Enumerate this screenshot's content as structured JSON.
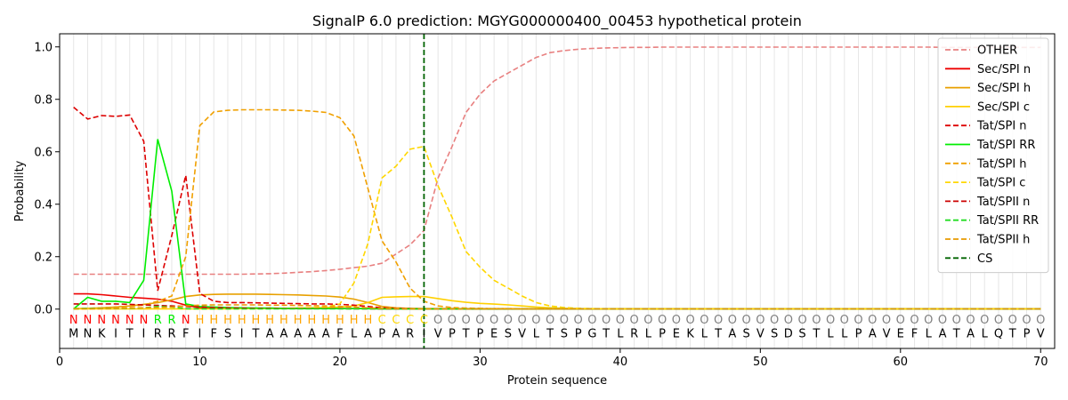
{
  "chart_data": {
    "type": "line",
    "title": "SignalP 6.0 prediction: MGYG000000400_00453 hypothetical protein",
    "xlabel": "Protein sequence",
    "ylabel": "Probability",
    "xlim": [
      0,
      71
    ],
    "ylim": [
      -0.15,
      1.05
    ],
    "xticks": [
      0,
      10,
      20,
      30,
      40,
      50,
      60,
      70
    ],
    "yticks": [
      0.0,
      0.2,
      0.4,
      0.6,
      0.8,
      1.0
    ],
    "legend_position": "top-right",
    "sequence": [
      "M",
      "N",
      "K",
      "I",
      "T",
      "I",
      "R",
      "R",
      "F",
      "I",
      "F",
      "S",
      "I",
      "T",
      "A",
      "A",
      "A",
      "A",
      "A",
      "F",
      "L",
      "A",
      "P",
      "A",
      "R",
      "I",
      "V",
      "P",
      "T",
      "P",
      "E",
      "S",
      "V",
      "L",
      "T",
      "S",
      "P",
      "G",
      "T",
      "L",
      "R",
      "L",
      "P",
      "E",
      "K",
      "L",
      "T",
      "A",
      "S",
      "V",
      "S",
      "D",
      "S",
      "T",
      "L",
      "L",
      "P",
      "A",
      "V",
      "E",
      "F",
      "L",
      "A",
      "T",
      "A",
      "L",
      "Q",
      "T",
      "P",
      "V"
    ],
    "region_labels": [
      "N",
      "N",
      "N",
      "N",
      "N",
      "N",
      "R",
      "R",
      "N",
      "H",
      "H",
      "H",
      "H",
      "H",
      "H",
      "H",
      "H",
      "H",
      "H",
      "H",
      "H",
      "H",
      "C",
      "C",
      "C",
      "C",
      "O",
      "O",
      "O",
      "O",
      "O",
      "O",
      "O",
      "O",
      "O",
      "O",
      "O",
      "O",
      "O",
      "O",
      "O",
      "O",
      "O",
      "O",
      "O",
      "O",
      "O",
      "O",
      "O",
      "O",
      "O",
      "O",
      "O",
      "O",
      "O",
      "O",
      "O",
      "O",
      "O",
      "O",
      "O",
      "O",
      "O",
      "O",
      "O",
      "O",
      "O",
      "O",
      "O",
      "O"
    ],
    "region_colors": {
      "N": "#ff0000",
      "R": "#00ee00",
      "H": "#ffa500",
      "C": "#ffd700",
      "O": "#808080"
    },
    "cleavage_site": 26,
    "cs_color": "#006400",
    "series": [
      {
        "name": "OTHER",
        "color": "#e88080",
        "dash": true,
        "values": [
          0.133,
          0.133,
          0.133,
          0.133,
          0.133,
          0.133,
          0.133,
          0.133,
          0.133,
          0.133,
          0.133,
          0.133,
          0.133,
          0.134,
          0.135,
          0.137,
          0.14,
          0.143,
          0.147,
          0.152,
          0.158,
          0.164,
          0.175,
          0.21,
          0.245,
          0.3,
          0.5,
          0.62,
          0.75,
          0.82,
          0.87,
          0.9,
          0.93,
          0.96,
          0.978,
          0.986,
          0.991,
          0.994,
          0.996,
          0.997,
          0.998,
          0.998,
          0.999,
          0.999,
          0.999,
          0.999,
          0.999,
          0.999,
          0.999,
          0.999,
          0.999,
          0.999,
          0.999,
          0.999,
          0.999,
          0.999,
          0.999,
          0.999,
          0.999,
          0.999,
          0.999,
          0.999,
          0.998,
          0.998,
          0.998,
          0.998,
          0.998,
          0.998,
          0.998,
          0.998
        ]
      },
      {
        "name": "Sec/SPI n",
        "color": "#ee0000",
        "dash": false,
        "values": [
          0.058,
          0.058,
          0.055,
          0.05,
          0.045,
          0.042,
          0.038,
          0.03,
          0.015,
          0.005,
          0.003,
          0.002,
          0.002,
          0.002,
          0.002,
          0.002,
          0.002,
          0.002,
          0.002,
          0.002,
          0.002,
          0.002,
          0.001,
          0.001,
          0.001,
          0.001,
          0.001,
          0.001,
          0.001,
          0.001,
          0.001,
          0.001,
          0.001,
          0.001,
          0.001,
          0.001,
          0.001,
          0.001,
          0.001,
          0.001,
          0.001,
          0.001,
          0.001,
          0.001,
          0.001,
          0.001,
          0.001,
          0.001,
          0.001,
          0.001,
          0.001,
          0.001,
          0.001,
          0.001,
          0.001,
          0.001,
          0.001,
          0.001,
          0.001,
          0.001,
          0.001,
          0.001,
          0.001,
          0.001,
          0.001,
          0.001,
          0.001,
          0.001,
          0.001,
          0.001
        ]
      },
      {
        "name": "Sec/SPI h",
        "color": "#e8a000",
        "dash": false,
        "values": [
          0.002,
          0.003,
          0.005,
          0.008,
          0.012,
          0.018,
          0.025,
          0.035,
          0.048,
          0.054,
          0.056,
          0.057,
          0.057,
          0.057,
          0.056,
          0.055,
          0.054,
          0.052,
          0.05,
          0.046,
          0.038,
          0.025,
          0.01,
          0.005,
          0.003,
          0.002,
          0.002,
          0.002,
          0.001,
          0.001,
          0.001,
          0.001,
          0.001,
          0.001,
          0.001,
          0.001,
          0.001,
          0.001,
          0.001,
          0.001,
          0.001,
          0.001,
          0.001,
          0.001,
          0.001,
          0.001,
          0.001,
          0.001,
          0.001,
          0.001,
          0.001,
          0.001,
          0.001,
          0.001,
          0.001,
          0.001,
          0.001,
          0.001,
          0.001,
          0.001,
          0.001,
          0.001,
          0.001,
          0.001,
          0.001,
          0.001,
          0.001,
          0.001,
          0.001,
          0.001
        ]
      },
      {
        "name": "Sec/SPI c",
        "color": "#ffd000",
        "dash": false,
        "values": [
          0.001,
          0.001,
          0.001,
          0.001,
          0.001,
          0.001,
          0.001,
          0.001,
          0.001,
          0.001,
          0.001,
          0.001,
          0.002,
          0.002,
          0.002,
          0.003,
          0.004,
          0.005,
          0.006,
          0.008,
          0.012,
          0.025,
          0.045,
          0.047,
          0.048,
          0.048,
          0.04,
          0.032,
          0.026,
          0.022,
          0.019,
          0.016,
          0.012,
          0.008,
          0.005,
          0.003,
          0.002,
          0.001,
          0.001,
          0.001,
          0.001,
          0.001,
          0.001,
          0.001,
          0.001,
          0.001,
          0.001,
          0.001,
          0.001,
          0.001,
          0.001,
          0.001,
          0.001,
          0.001,
          0.001,
          0.001,
          0.001,
          0.001,
          0.001,
          0.001,
          0.001,
          0.001,
          0.001,
          0.001,
          0.001,
          0.001,
          0.001,
          0.001,
          0.001,
          0.001
        ]
      },
      {
        "name": "Tat/SPI n",
        "color": "#dd0000",
        "dash": true,
        "values": [
          0.77,
          0.725,
          0.738,
          0.735,
          0.74,
          0.64,
          0.07,
          0.28,
          0.51,
          0.06,
          0.03,
          0.025,
          0.025,
          0.024,
          0.023,
          0.022,
          0.021,
          0.02,
          0.02,
          0.018,
          0.015,
          0.01,
          0.005,
          0.003,
          0.002,
          0.001,
          0.001,
          0.001,
          0.001,
          0.001,
          0.001,
          0.001,
          0.001,
          0.001,
          0.001,
          0.001,
          0.001,
          0.001,
          0.001,
          0.001,
          0.001,
          0.001,
          0.001,
          0.001,
          0.001,
          0.001,
          0.001,
          0.001,
          0.001,
          0.001,
          0.001,
          0.001,
          0.001,
          0.001,
          0.001,
          0.001,
          0.001,
          0.001,
          0.001,
          0.001,
          0.001,
          0.001,
          0.001,
          0.001,
          0.001,
          0.001,
          0.001,
          0.001,
          0.001,
          0.001
        ]
      },
      {
        "name": "Tat/SPI RR",
        "color": "#00ee00",
        "dash": false,
        "values": [
          0.001,
          0.045,
          0.03,
          0.03,
          0.025,
          0.11,
          0.648,
          0.45,
          0.02,
          0.01,
          0.008,
          0.006,
          0.005,
          0.004,
          0.004,
          0.003,
          0.003,
          0.003,
          0.002,
          0.002,
          0.002,
          0.002,
          0.001,
          0.001,
          0.001,
          0.001,
          0.001,
          0.001,
          0.001,
          0.001,
          0.001,
          0.001,
          0.001,
          0.001,
          0.001,
          0.001,
          0.001,
          0.001,
          0.001,
          0.001,
          0.001,
          0.001,
          0.001,
          0.001,
          0.001,
          0.001,
          0.001,
          0.001,
          0.001,
          0.001,
          0.001,
          0.001,
          0.001,
          0.001,
          0.001,
          0.001,
          0.001,
          0.001,
          0.001,
          0.001,
          0.001,
          0.001,
          0.001,
          0.001,
          0.001,
          0.001,
          0.001,
          0.001,
          0.001,
          0.001
        ]
      },
      {
        "name": "Tat/SPI h",
        "color": "#f0a000",
        "dash": true,
        "values": [
          0.002,
          0.003,
          0.005,
          0.008,
          0.01,
          0.015,
          0.03,
          0.05,
          0.2,
          0.7,
          0.752,
          0.758,
          0.76,
          0.76,
          0.76,
          0.759,
          0.758,
          0.755,
          0.75,
          0.73,
          0.66,
          0.46,
          0.26,
          0.18,
          0.08,
          0.03,
          0.012,
          0.006,
          0.004,
          0.003,
          0.002,
          0.002,
          0.001,
          0.001,
          0.001,
          0.001,
          0.001,
          0.001,
          0.001,
          0.001,
          0.001,
          0.001,
          0.001,
          0.001,
          0.001,
          0.001,
          0.001,
          0.001,
          0.001,
          0.001,
          0.001,
          0.001,
          0.001,
          0.001,
          0.001,
          0.001,
          0.001,
          0.001,
          0.001,
          0.001,
          0.001,
          0.001,
          0.001,
          0.001,
          0.001,
          0.001,
          0.001,
          0.001,
          0.001,
          0.001
        ]
      },
      {
        "name": "Tat/SPI c",
        "color": "#ffd700",
        "dash": true,
        "values": [
          0.001,
          0.001,
          0.001,
          0.001,
          0.001,
          0.001,
          0.001,
          0.001,
          0.001,
          0.001,
          0.001,
          0.001,
          0.001,
          0.001,
          0.002,
          0.002,
          0.003,
          0.005,
          0.008,
          0.02,
          0.1,
          0.25,
          0.5,
          0.545,
          0.61,
          0.62,
          0.47,
          0.35,
          0.22,
          0.16,
          0.11,
          0.08,
          0.05,
          0.025,
          0.012,
          0.006,
          0.003,
          0.002,
          0.001,
          0.001,
          0.001,
          0.001,
          0.001,
          0.001,
          0.001,
          0.001,
          0.001,
          0.001,
          0.001,
          0.001,
          0.001,
          0.001,
          0.001,
          0.001,
          0.001,
          0.001,
          0.001,
          0.001,
          0.001,
          0.001,
          0.001,
          0.001,
          0.001,
          0.001,
          0.001,
          0.001,
          0.001,
          0.001,
          0.001,
          0.001
        ]
      },
      {
        "name": "Tat/SPII n",
        "color": "#cc0000",
        "dash": true,
        "values": [
          0.02,
          0.02,
          0.02,
          0.02,
          0.018,
          0.016,
          0.014,
          0.012,
          0.01,
          0.008,
          0.006,
          0.005,
          0.004,
          0.003,
          0.003,
          0.002,
          0.002,
          0.002,
          0.002,
          0.002,
          0.001,
          0.001,
          0.001,
          0.001,
          0.001,
          0.001,
          0.001,
          0.001,
          0.001,
          0.001,
          0.001,
          0.001,
          0.001,
          0.001,
          0.001,
          0.001,
          0.001,
          0.001,
          0.001,
          0.001,
          0.001,
          0.001,
          0.001,
          0.001,
          0.001,
          0.001,
          0.001,
          0.001,
          0.001,
          0.001,
          0.001,
          0.001,
          0.001,
          0.001,
          0.001,
          0.001,
          0.001,
          0.001,
          0.001,
          0.001,
          0.001,
          0.001,
          0.001,
          0.001,
          0.001,
          0.001,
          0.001,
          0.001,
          0.001,
          0.001
        ]
      },
      {
        "name": "Tat/SPII RR",
        "color": "#22dd22",
        "dash": true,
        "values": [
          0.001,
          0.003,
          0.003,
          0.003,
          0.003,
          0.005,
          0.01,
          0.008,
          0.002,
          0.001,
          0.001,
          0.001,
          0.001,
          0.001,
          0.001,
          0.001,
          0.001,
          0.001,
          0.001,
          0.001,
          0.001,
          0.001,
          0.001,
          0.001,
          0.001,
          0.001,
          0.001,
          0.001,
          0.001,
          0.001,
          0.001,
          0.001,
          0.001,
          0.001,
          0.001,
          0.001,
          0.001,
          0.001,
          0.001,
          0.001,
          0.001,
          0.001,
          0.001,
          0.001,
          0.001,
          0.001,
          0.001,
          0.001,
          0.001,
          0.001,
          0.001,
          0.001,
          0.001,
          0.001,
          0.001,
          0.001,
          0.001,
          0.001,
          0.001,
          0.001,
          0.001,
          0.001,
          0.001,
          0.001,
          0.001,
          0.001,
          0.001,
          0.001,
          0.001,
          0.001
        ]
      },
      {
        "name": "Tat/SPII h",
        "color": "#e89a00",
        "dash": true,
        "values": [
          0.001,
          0.001,
          0.002,
          0.003,
          0.004,
          0.005,
          0.006,
          0.008,
          0.012,
          0.015,
          0.016,
          0.016,
          0.016,
          0.016,
          0.015,
          0.015,
          0.014,
          0.013,
          0.012,
          0.01,
          0.008,
          0.005,
          0.003,
          0.002,
          0.001,
          0.001,
          0.001,
          0.001,
          0.001,
          0.001,
          0.001,
          0.001,
          0.001,
          0.001,
          0.001,
          0.001,
          0.001,
          0.001,
          0.001,
          0.001,
          0.001,
          0.001,
          0.001,
          0.001,
          0.001,
          0.001,
          0.001,
          0.001,
          0.001,
          0.001,
          0.001,
          0.001,
          0.001,
          0.001,
          0.001,
          0.001,
          0.001,
          0.001,
          0.001,
          0.001,
          0.001,
          0.001,
          0.001,
          0.001,
          0.001,
          0.001,
          0.001,
          0.001,
          0.001,
          0.001
        ]
      }
    ],
    "legend": [
      {
        "name": "OTHER",
        "color": "#e88080",
        "dash": true
      },
      {
        "name": "Sec/SPI n",
        "color": "#ee0000",
        "dash": false
      },
      {
        "name": "Sec/SPI h",
        "color": "#e8a000",
        "dash": false
      },
      {
        "name": "Sec/SPI c",
        "color": "#ffd000",
        "dash": false
      },
      {
        "name": "Tat/SPI n",
        "color": "#dd0000",
        "dash": true
      },
      {
        "name": "Tat/SPI RR",
        "color": "#00ee00",
        "dash": false
      },
      {
        "name": "Tat/SPI h",
        "color": "#f0a000",
        "dash": true
      },
      {
        "name": "Tat/SPI c",
        "color": "#ffd700",
        "dash": true
      },
      {
        "name": "Tat/SPII n",
        "color": "#cc0000",
        "dash": true
      },
      {
        "name": "Tat/SPII RR",
        "color": "#22dd22",
        "dash": true
      },
      {
        "name": "Tat/SPII h",
        "color": "#e89a00",
        "dash": true
      },
      {
        "name": "CS",
        "color": "#006400",
        "dash": true
      }
    ]
  }
}
